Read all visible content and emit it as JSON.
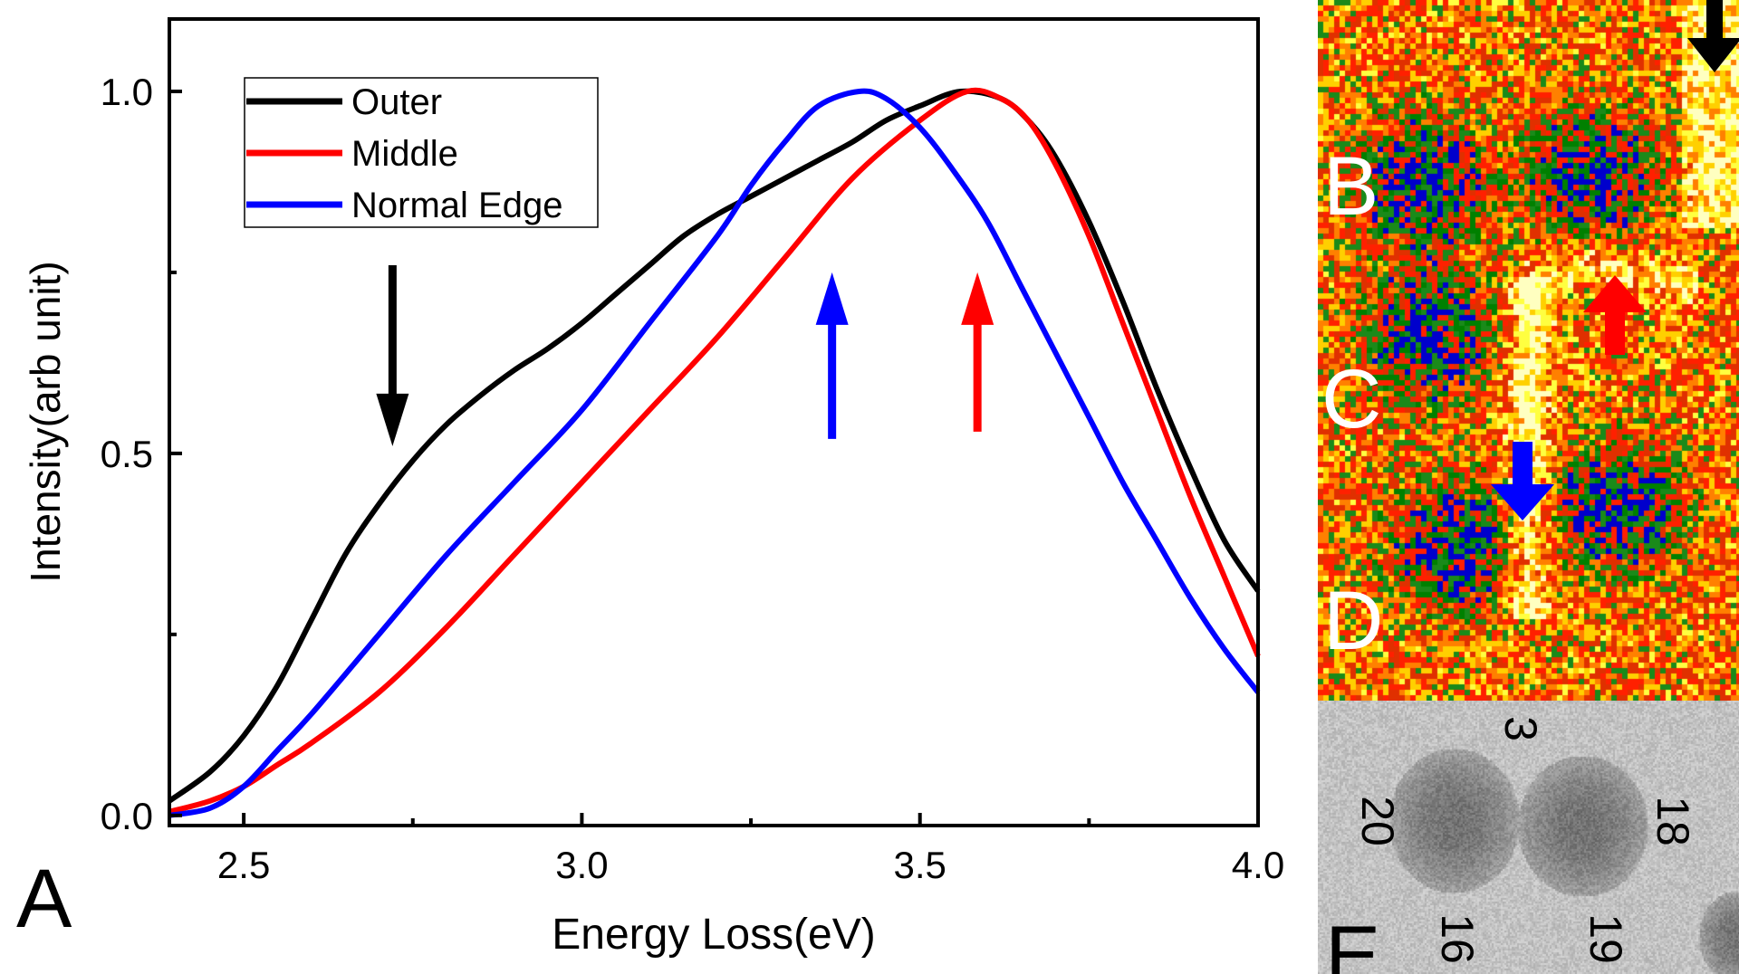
{
  "chart_data": {
    "type": "line",
    "panel_label": "A",
    "xlabel": "Energy Loss(eV)",
    "ylabel": "Intensity(arb unit)",
    "xlim": [
      2.39,
      4.0
    ],
    "ylim": [
      -0.014,
      1.1
    ],
    "xticks": [
      2.5,
      3.0,
      3.5,
      4.0
    ],
    "xtick_labels": [
      "2.5",
      "3.0",
      "3.5",
      "4.0"
    ],
    "xminor": [
      2.75,
      3.25,
      3.75
    ],
    "yticks": [
      0.0,
      0.5,
      1.0
    ],
    "ytick_labels": [
      "0.0",
      "0.5",
      "1.0"
    ],
    "yminor": [
      0.25,
      0.75
    ],
    "grid": false,
    "legend_position": "top-left",
    "series": [
      {
        "name": "Outer",
        "color": "#000000",
        "x": [
          2.39,
          2.45,
          2.5,
          2.55,
          2.6,
          2.65,
          2.7,
          2.75,
          2.8,
          2.85,
          2.9,
          2.95,
          3.0,
          3.05,
          3.1,
          3.15,
          3.2,
          3.25,
          3.3,
          3.35,
          3.4,
          3.45,
          3.5,
          3.56,
          3.62,
          3.66,
          3.7,
          3.75,
          3.8,
          3.85,
          3.9,
          3.95,
          4.0
        ],
        "y": [
          0.02,
          0.06,
          0.11,
          0.18,
          0.27,
          0.36,
          0.43,
          0.49,
          0.54,
          0.58,
          0.615,
          0.645,
          0.68,
          0.72,
          0.76,
          0.8,
          0.83,
          0.855,
          0.88,
          0.905,
          0.93,
          0.96,
          0.98,
          1.0,
          0.99,
          0.96,
          0.91,
          0.82,
          0.71,
          0.59,
          0.48,
          0.38,
          0.31
        ]
      },
      {
        "name": "Middle",
        "color": "#ff0000",
        "x": [
          2.39,
          2.45,
          2.5,
          2.55,
          2.6,
          2.7,
          2.8,
          2.9,
          3.0,
          3.1,
          3.2,
          3.3,
          3.4,
          3.5,
          3.57,
          3.62,
          3.66,
          3.7,
          3.75,
          3.8,
          3.85,
          3.9,
          3.95,
          4.0
        ],
        "y": [
          0.005,
          0.02,
          0.04,
          0.07,
          0.1,
          0.17,
          0.26,
          0.36,
          0.46,
          0.56,
          0.66,
          0.77,
          0.88,
          0.96,
          1.0,
          0.99,
          0.96,
          0.9,
          0.8,
          0.68,
          0.56,
          0.44,
          0.33,
          0.22
        ]
      },
      {
        "name": "Normal Edge",
        "color": "#0000ff",
        "x": [
          2.39,
          2.45,
          2.5,
          2.55,
          2.6,
          2.7,
          2.8,
          2.9,
          3.0,
          3.1,
          3.2,
          3.25,
          3.3,
          3.35,
          3.41,
          3.45,
          3.5,
          3.55,
          3.6,
          3.65,
          3.7,
          3.75,
          3.8,
          3.85,
          3.9,
          3.95,
          4.0
        ],
        "y": [
          0.0,
          0.01,
          0.04,
          0.09,
          0.14,
          0.25,
          0.36,
          0.46,
          0.56,
          0.68,
          0.8,
          0.87,
          0.93,
          0.98,
          1.0,
          0.99,
          0.95,
          0.89,
          0.82,
          0.73,
          0.64,
          0.55,
          0.46,
          0.38,
          0.3,
          0.23,
          0.17
        ]
      }
    ],
    "annotations": [
      {
        "type": "arrow",
        "direction": "down",
        "color": "#000000",
        "x": 2.72,
        "y_from": 0.76,
        "y_to": 0.51
      },
      {
        "type": "arrow",
        "direction": "up",
        "color": "#0000ff",
        "x": 3.37,
        "y_from": 0.52,
        "y_to": 0.75
      },
      {
        "type": "arrow",
        "direction": "up",
        "color": "#ff0000",
        "x": 3.585,
        "y_from": 0.53,
        "y_to": 0.75
      }
    ]
  },
  "images": {
    "map_labels": [
      "B",
      "C",
      "D"
    ],
    "micrograph_label": "E",
    "micrograph_numbers": [
      "3",
      "20",
      "16",
      "19",
      "18"
    ],
    "arrow_colors": {
      "black": "#000000",
      "red": "#ff0000",
      "blue": "#0000ff"
    }
  }
}
